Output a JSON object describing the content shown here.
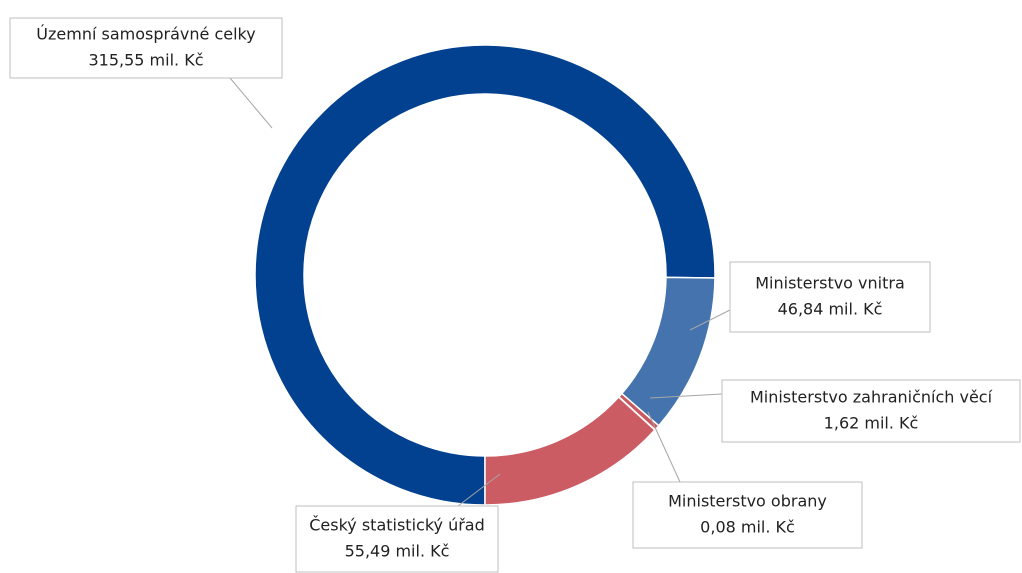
{
  "chart_data": {
    "type": "donut",
    "categories": [
      "Územní samosprávné celky",
      "Ministerstvo vnitra",
      "Ministerstvo zahraničních věcí",
      "Ministerstvo obrany",
      "Český statistický úřad"
    ],
    "values": [
      315.55,
      46.84,
      1.62,
      0.08,
      55.49
    ],
    "value_labels": [
      "315,55 mil. Kč",
      "46,84 mil. Kč",
      "1,62 mil. Kč",
      "0,08 mil. Kč",
      "55,49 mil. Kč"
    ],
    "colors": [
      "#02418f",
      "#4473ae",
      "#c9595f",
      "#c9595f",
      "#cc5c63"
    ]
  }
}
